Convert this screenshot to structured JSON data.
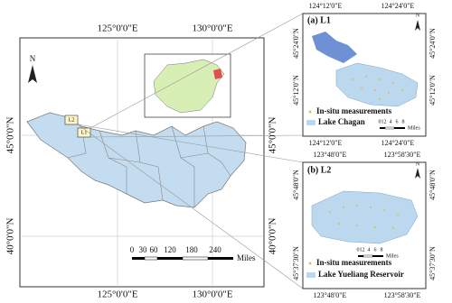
{
  "main_map": {
    "top_lon_labels": [
      "125°0'0\"E",
      "130°0'0\"E"
    ],
    "bottom_lon_labels": [
      "125°0'0\"E",
      "130°0'0\"E"
    ],
    "left_lat_labels": [
      "45°0'0\"N",
      "40°0'0\"N"
    ],
    "right_lat_labels": [
      "45°0'0\"N",
      "40°0'0\"N"
    ],
    "north": "N",
    "scale_ticks": [
      "0",
      "30",
      "60",
      "120",
      "180",
      "240"
    ],
    "scale_unit": "Miles",
    "site_labels": [
      "L2",
      "L1"
    ]
  },
  "panel_a": {
    "title": "(a) L1",
    "top_lon_labels": [
      "124°12'0\"E",
      "124°24'0\"E"
    ],
    "bottom_lon_labels": [
      "124°12'0\"E",
      "124°24'0\"E"
    ],
    "left_lat_labels": [
      "45°24'0\"N",
      "45°12'0\"N"
    ],
    "right_lat_labels": [
      "45°24'0\"N",
      "45°12'0\"N"
    ],
    "north": "N",
    "legend": [
      "In-situ measurements",
      "Lake Chagan"
    ],
    "scale_ticks": [
      "0",
      "1",
      "2",
      "4",
      "6",
      "8"
    ],
    "scale_unit": "Miles"
  },
  "panel_b": {
    "title": "(b) L2",
    "top_lon_labels": [
      "123°48'0\"E",
      "123°58'30\"E"
    ],
    "bottom_lon_labels": [
      "123°48'0\"E",
      "123°58'30\"E"
    ],
    "left_lat_labels": [
      "45°48'0\"N",
      "45°37'30\"N"
    ],
    "right_lat_labels": [
      "45°48'0\"N",
      "45°37'30\"N"
    ],
    "north": "N",
    "legend": [
      "In-situ measurements",
      "Lake Yueliang Reservoir"
    ],
    "scale_ticks": [
      "0",
      "1",
      "2",
      "4",
      "6",
      "8"
    ],
    "scale_unit": "Miles"
  }
}
